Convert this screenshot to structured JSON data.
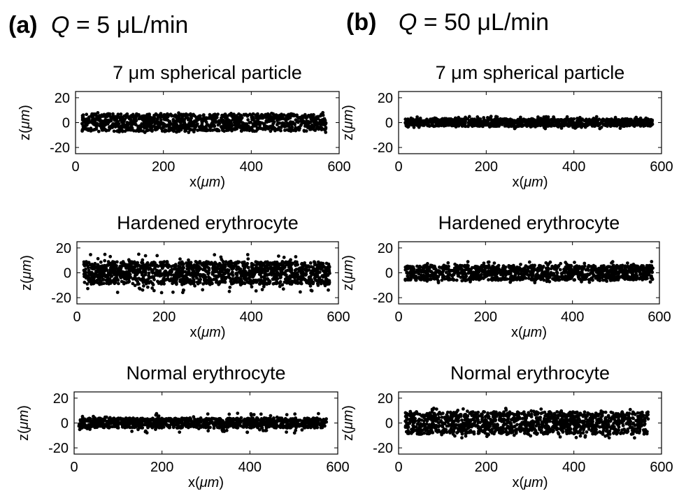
{
  "figure": {
    "columns": [
      {
        "tag": "(a)",
        "var": "Q",
        "rest": " = 5 μL/min"
      },
      {
        "tag": "(b)",
        "var": "Q",
        "rest": " = 50 μL/min"
      }
    ]
  },
  "chart_data": [
    {
      "type": "scatter",
      "title": "7 μm spherical particle",
      "xlabel_prefix": "x(",
      "xlabel_unit": "μm",
      "xlabel_suffix": ")",
      "ylabel_prefix": "z(",
      "ylabel_unit": "μm",
      "ylabel_suffix": ")",
      "xlim": [
        0,
        600
      ],
      "ylim": [
        -25,
        25
      ],
      "xticks": [
        0,
        200,
        400,
        600
      ],
      "yticks": [
        -20,
        0,
        20
      ],
      "marker_color": "#000000",
      "point_count": 1200,
      "x_range": [
        15,
        570
      ],
      "z_band": [
        -7,
        7
      ],
      "outlier_band": [
        -8,
        8
      ]
    },
    {
      "type": "scatter",
      "title": "7 μm spherical particle",
      "xlabel_prefix": "x(",
      "xlabel_unit": "μm",
      "xlabel_suffix": ")",
      "ylabel_prefix": "z(",
      "ylabel_unit": "μm",
      "ylabel_suffix": ")",
      "xlim": [
        0,
        600
      ],
      "ylim": [
        -25,
        25
      ],
      "xticks": [
        0,
        200,
        400,
        600
      ],
      "yticks": [
        -20,
        0,
        20
      ],
      "marker_color": "#000000",
      "point_count": 1100,
      "x_range": [
        15,
        580
      ],
      "z_band": [
        -3,
        3
      ],
      "outlier_band": [
        -5,
        5
      ]
    },
    {
      "type": "scatter",
      "title": "Hardened erythrocyte",
      "xlabel_prefix": "x(",
      "xlabel_unit": "μm",
      "xlabel_suffix": ")",
      "ylabel_prefix": "z(",
      "ylabel_unit": "μm",
      "ylabel_suffix": ")",
      "xlim": [
        0,
        600
      ],
      "ylim": [
        -25,
        25
      ],
      "xticks": [
        0,
        200,
        400,
        600
      ],
      "yticks": [
        -20,
        0,
        20
      ],
      "marker_color": "#000000",
      "point_count": 1500,
      "x_range": [
        15,
        580
      ],
      "z_band": [
        -9,
        9
      ],
      "outlier_band": [
        -16,
        15
      ]
    },
    {
      "type": "scatter",
      "title": "Hardened erythrocyte",
      "xlabel_prefix": "x(",
      "xlabel_unit": "μm",
      "xlabel_suffix": ")",
      "ylabel_prefix": "z(",
      "ylabel_unit": "μm",
      "ylabel_suffix": ")",
      "xlim": [
        0,
        600
      ],
      "ylim": [
        -25,
        25
      ],
      "xticks": [
        0,
        200,
        400,
        600
      ],
      "yticks": [
        -20,
        0,
        20
      ],
      "marker_color": "#000000",
      "point_count": 1200,
      "x_range": [
        15,
        585
      ],
      "z_band": [
        -6,
        6
      ],
      "outlier_band": [
        -8,
        9
      ]
    },
    {
      "type": "scatter",
      "title": "Normal erythrocyte",
      "xlabel_prefix": "x(",
      "xlabel_unit": "μm",
      "xlabel_suffix": ")",
      "ylabel_prefix": "z(",
      "ylabel_unit": "μm",
      "ylabel_suffix": ")",
      "xlim": [
        0,
        600
      ],
      "ylim": [
        -25,
        25
      ],
      "xticks": [
        0,
        200,
        400,
        600
      ],
      "yticks": [
        -20,
        0,
        20
      ],
      "marker_color": "#000000",
      "point_count": 1100,
      "x_range": [
        10,
        575
      ],
      "z_band": [
        -4,
        4
      ],
      "outlier_band": [
        -8,
        8
      ]
    },
    {
      "type": "scatter",
      "title": "Normal erythrocyte",
      "xlabel_prefix": "x(",
      "xlabel_unit": "μm",
      "xlabel_suffix": ")",
      "ylabel_prefix": "z(",
      "ylabel_unit": "μm",
      "ylabel_suffix": ")",
      "xlim": [
        0,
        600
      ],
      "ylim": [
        -25,
        25
      ],
      "xticks": [
        0,
        200,
        400,
        600
      ],
      "yticks": [
        -20,
        0,
        20
      ],
      "marker_color": "#000000",
      "point_count": 1300,
      "x_range": [
        15,
        570
      ],
      "z_band": [
        -9,
        9
      ],
      "outlier_band": [
        -12,
        12
      ]
    }
  ]
}
